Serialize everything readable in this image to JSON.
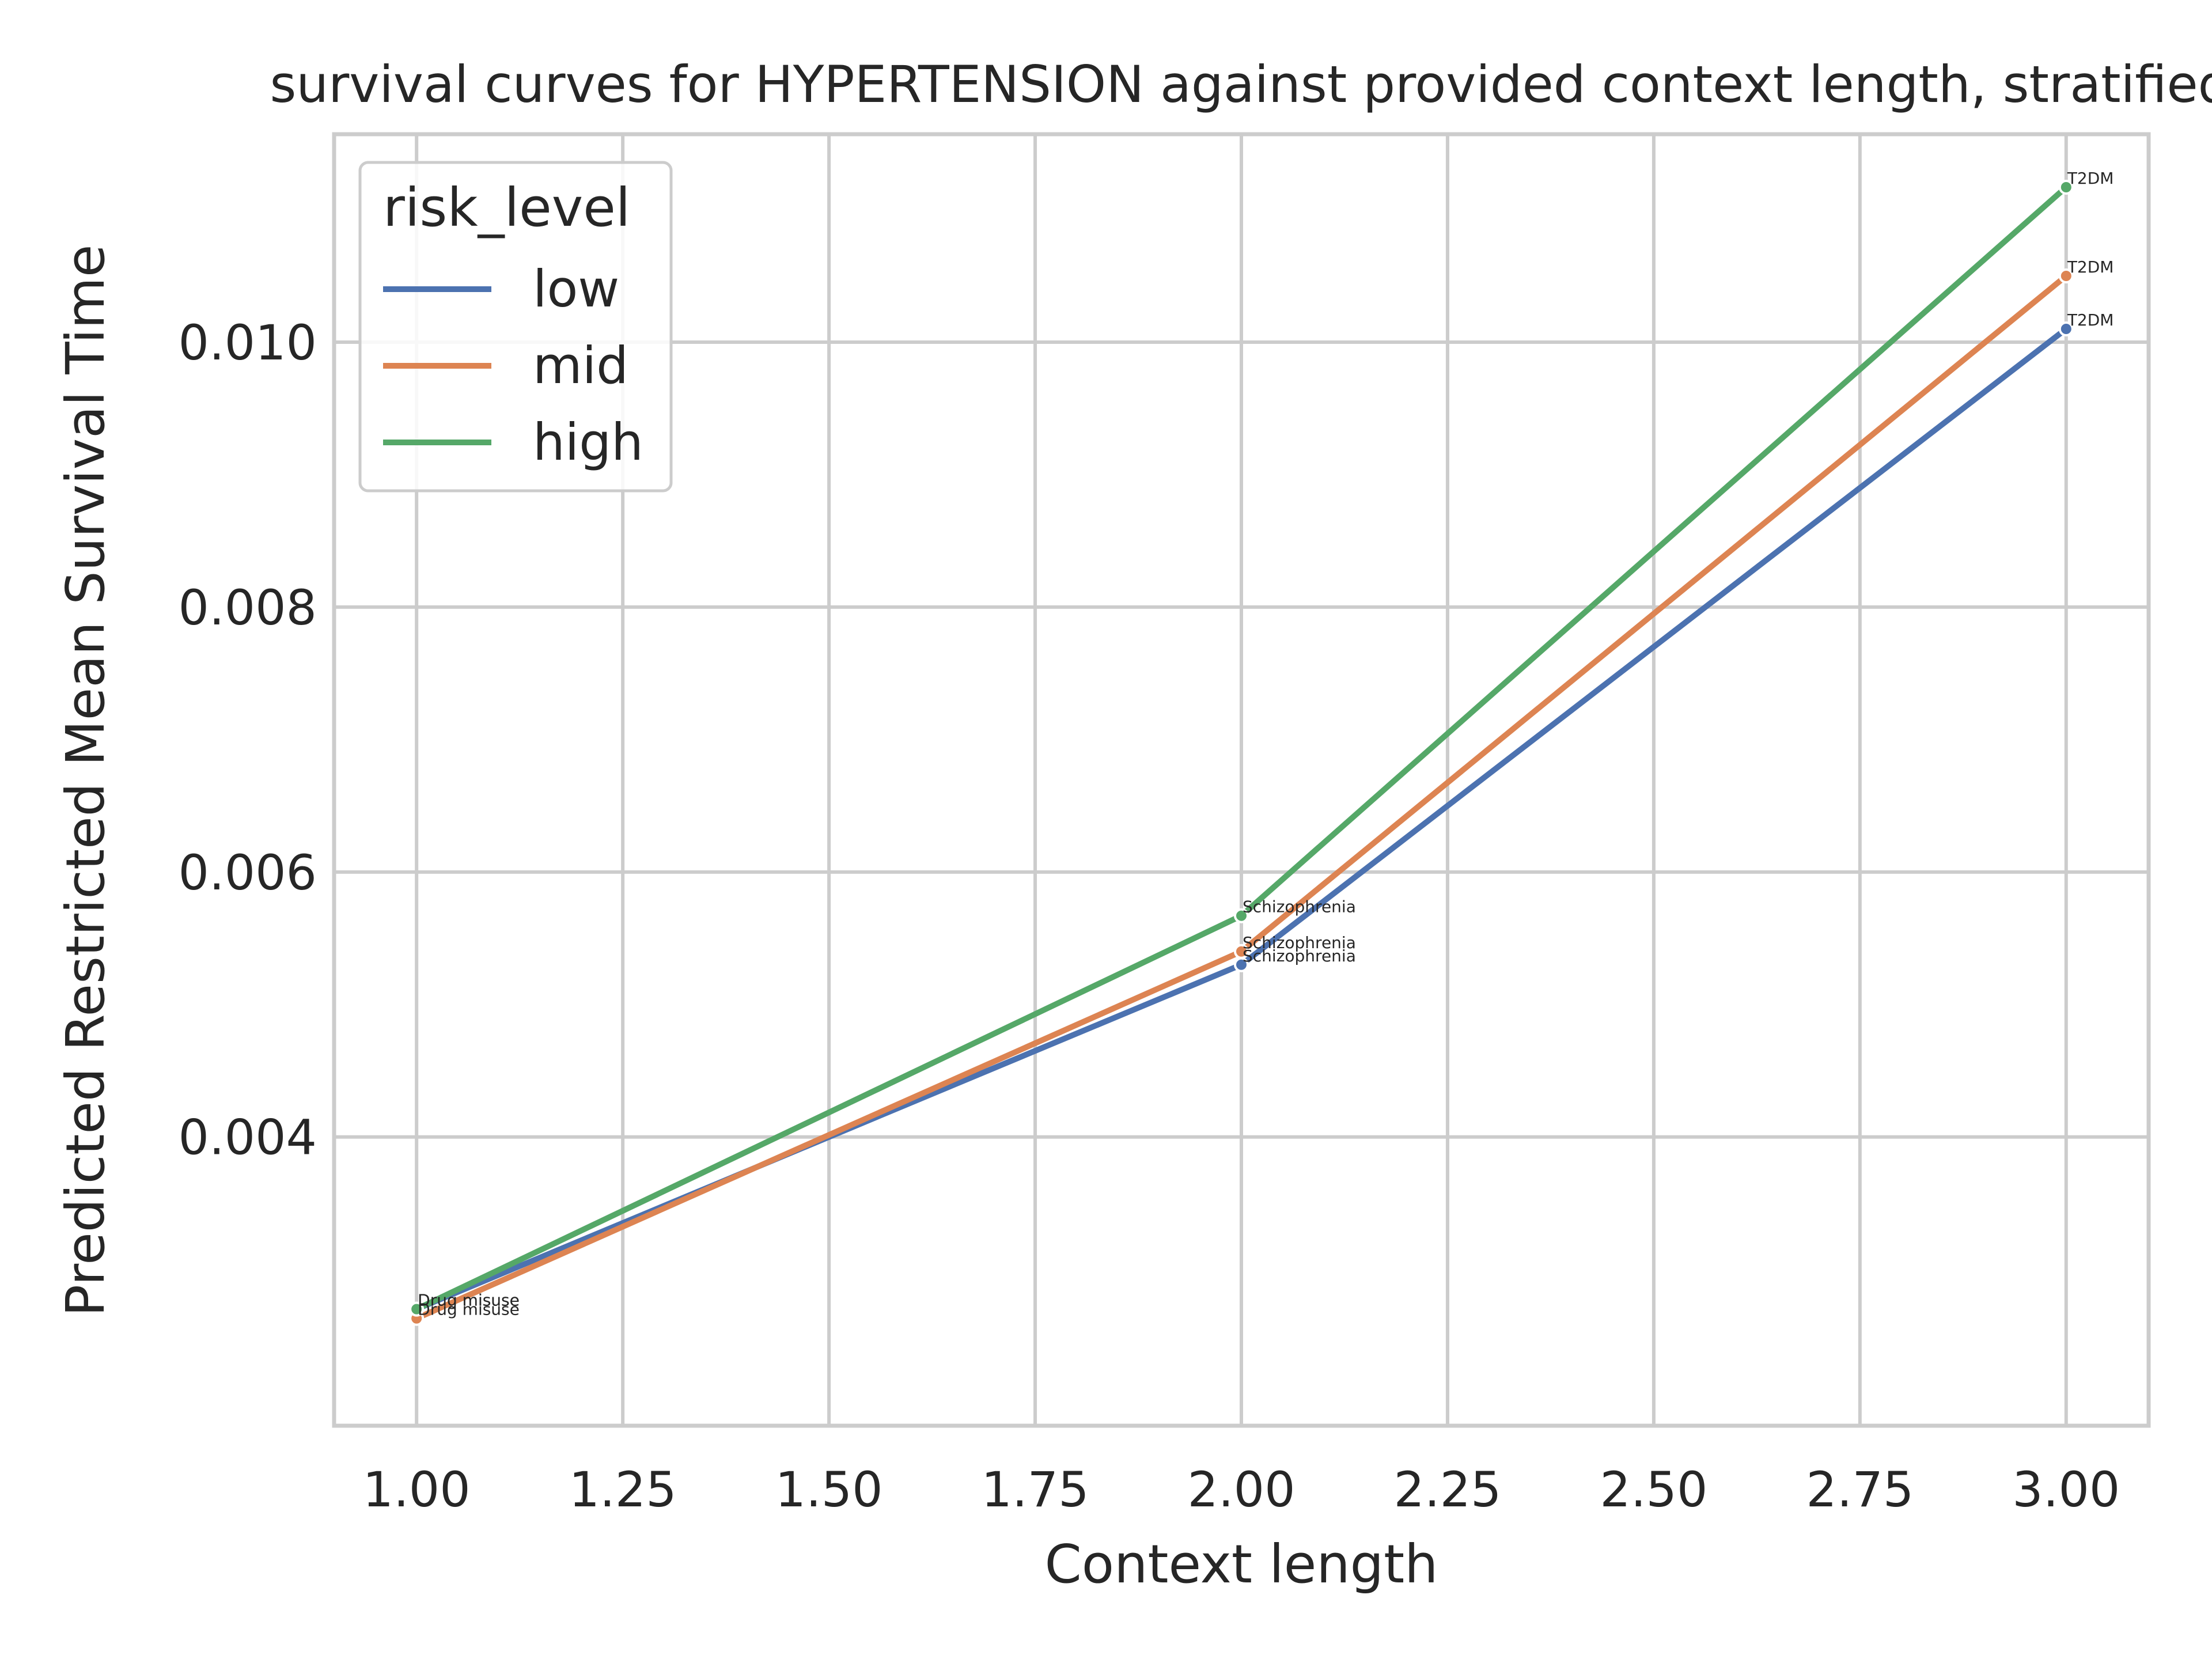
{
  "chart_data": {
    "type": "line",
    "title": "survival curves for HYPERTENSION against provided context length, stratified",
    "xlabel": "Context length",
    "ylabel": "Predicted Restricted Mean Survival Time",
    "xlim": [
      0.9,
      3.1
    ],
    "ylim": [
      0.00182,
      0.01157
    ],
    "xticks": [
      1.0,
      1.25,
      1.5,
      1.75,
      2.0,
      2.25,
      2.5,
      2.75,
      3.0
    ],
    "xtick_labels": [
      "1.00",
      "1.25",
      "1.50",
      "1.75",
      "2.00",
      "2.25",
      "2.50",
      "2.75",
      "3.00"
    ],
    "yticks": [
      0.004,
      0.006,
      0.008,
      0.01
    ],
    "ytick_labels": [
      "0.004",
      "0.006",
      "0.008",
      "0.010"
    ],
    "grid": true,
    "legend": {
      "title": "risk_level",
      "placement": "top-left"
    },
    "series": [
      {
        "name": "low",
        "color": "#4c72b0",
        "x": [
          1,
          2,
          3
        ],
        "y": [
          0.0027,
          0.0053,
          0.0101
        ],
        "point_labels": [
          "Drug misuse",
          "Schizophrenia",
          "T2DM"
        ]
      },
      {
        "name": "mid",
        "color": "#dd8452",
        "x": [
          1,
          2,
          3
        ],
        "y": [
          0.00263,
          0.0054,
          0.0105
        ],
        "point_labels": [
          "Drug misuse",
          "Schizophrenia",
          "T2DM"
        ]
      },
      {
        "name": "high",
        "color": "#55a868",
        "x": [
          1,
          2,
          3
        ],
        "y": [
          0.0027,
          0.00567,
          0.01117
        ],
        "point_labels": [
          "Drug misuse",
          "Schizophrenia",
          "T2DM"
        ]
      }
    ]
  }
}
